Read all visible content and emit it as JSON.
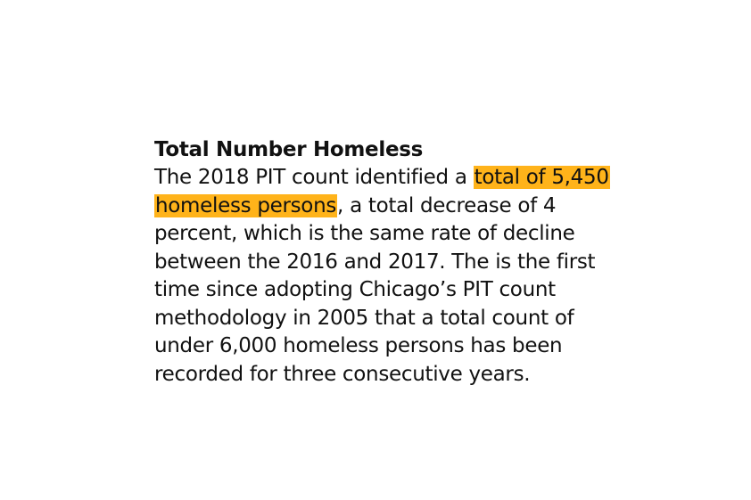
{
  "heading": "Total Number Homeless",
  "highlight_color": "#ffb31a",
  "paragraph": {
    "line1_pre": "The 2018 PIT count identified a ",
    "line1_hl": "total of 5,450",
    "line2_hl": "homeless persons",
    "line2_post": ", a total decrease of 4",
    "line3": "percent, which is the same rate of decline",
    "line4": "between the 2016 and 2017. The is the first",
    "line5": "time since adopting Chicago’s PIT count",
    "line6": "methodology in 2005 that a total count of",
    "line7": "under 6,000 homeless persons has been",
    "line8": "recorded for three consecutive years."
  }
}
